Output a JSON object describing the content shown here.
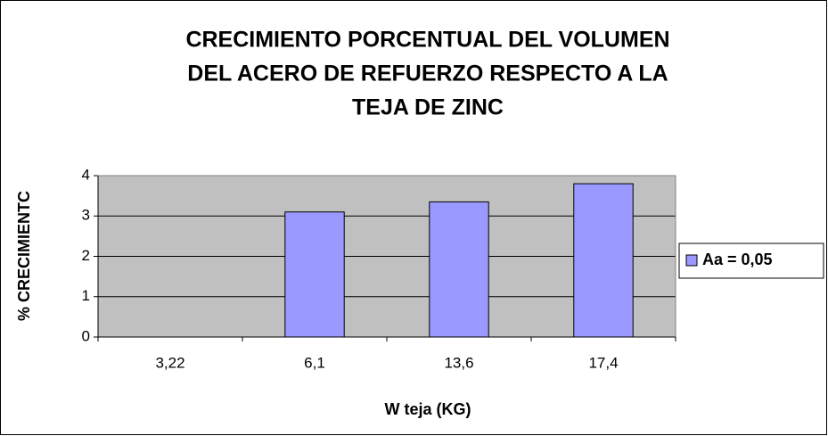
{
  "chart_data": {
    "type": "bar",
    "title": [
      "CRECIMIENTO PORCENTUAL  DEL VOLUMEN",
      "DEL ACERO DE REFUERZO  RESPECTO A LA",
      "TEJA DE ZINC"
    ],
    "x_label": "W teja (KG)",
    "y_label": "% CRECIMIENTC",
    "categories": [
      "3,22",
      "6,1",
      "13,6",
      "17,4"
    ],
    "series": [
      {
        "name": "Aa = 0,05",
        "color": "#9999ff",
        "values": [
          0,
          3.1,
          3.35,
          3.8
        ]
      }
    ],
    "ylim": [
      0,
      4
    ],
    "yticks": [
      0,
      1,
      2,
      3,
      4
    ],
    "grid": true,
    "legend": "right",
    "plot_background": "#c0c0c0"
  }
}
